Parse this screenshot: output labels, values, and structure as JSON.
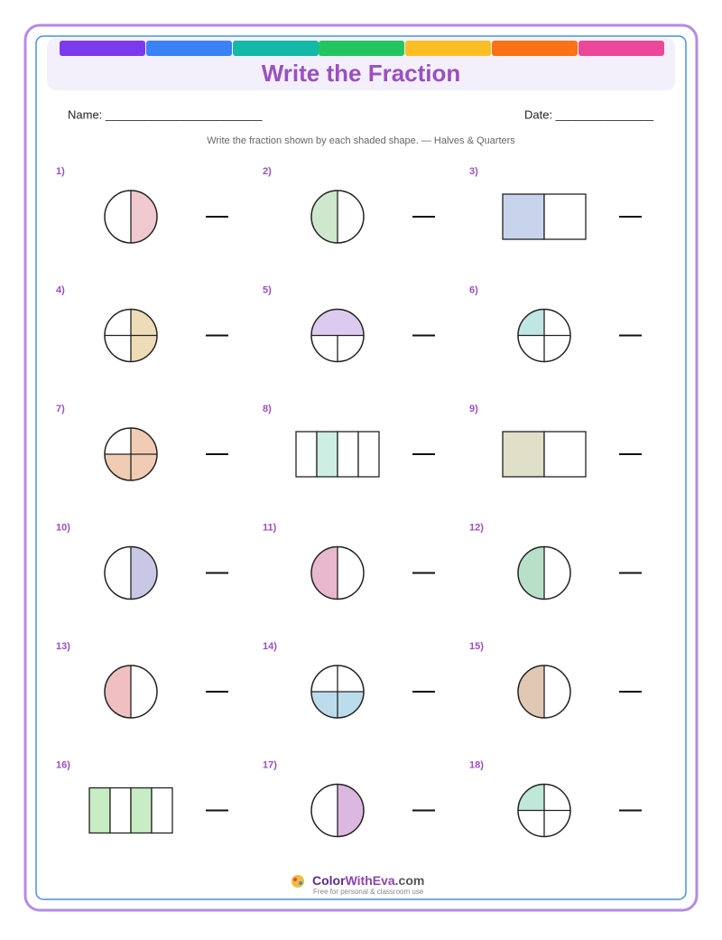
{
  "header": {
    "title": "Write the Fraction",
    "name_label": "Name: ________________________",
    "date_label": "Date: _______________",
    "instructions": "Write the fraction shown by each shaded shape. — Halves & Quarters"
  },
  "problems": [
    "1)",
    "2)",
    "3)",
    "4)",
    "5)",
    "6)",
    "7)",
    "8)",
    "9)",
    "10)",
    "11)",
    "12)",
    "13)",
    "14)",
    "15)",
    "16)",
    "17)",
    "18)"
  ],
  "footer": {
    "brand_parts": [
      "Color",
      "WithEva",
      ".com"
    ],
    "tagline": "Free for personal & classroom use"
  }
}
